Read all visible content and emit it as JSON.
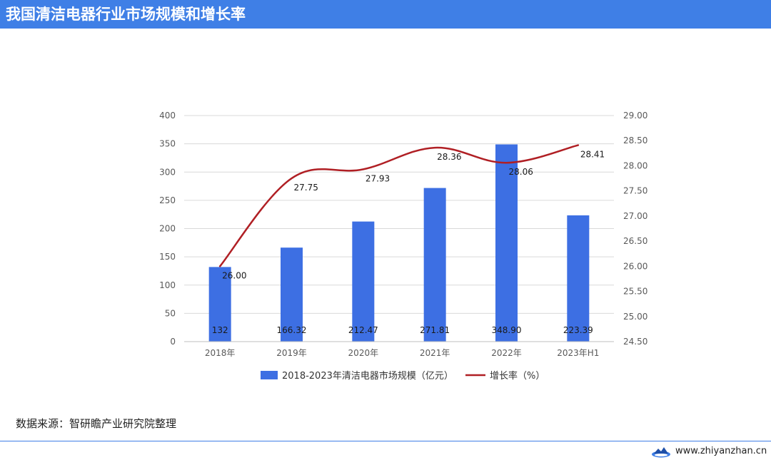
{
  "header": {
    "title": "我国清洁电器行业市场规模和增长率"
  },
  "footer": {
    "source": "数据来源：智研瞻产业研究院整理",
    "website": "www.zhiyanzhan.cn"
  },
  "colors": {
    "bar": "#3d6fe3",
    "line": "#b01f24",
    "header": "#3f7fe6"
  },
  "chart_data": {
    "type": "bar",
    "categories": [
      "2018年",
      "2019年",
      "2020年",
      "2021年",
      "2022年",
      "2023年H1"
    ],
    "series": [
      {
        "name": "2018-2023年清洁电器市场规模（亿元）",
        "type": "bar",
        "axis": "left",
        "values": [
          132,
          166.32,
          212.47,
          271.81,
          348.9,
          223.39
        ],
        "labels": [
          "132",
          "166.32",
          "212.47",
          "271.81",
          "348.90",
          "223.39"
        ]
      },
      {
        "name": "增长率（%）",
        "type": "line",
        "axis": "right",
        "values": [
          26.0,
          27.75,
          27.93,
          28.36,
          28.06,
          28.41
        ],
        "labels": [
          "26.00",
          "27.75",
          "27.93",
          "28.36",
          "28.06",
          "28.41"
        ]
      }
    ],
    "y_left": {
      "range": [
        0,
        400
      ],
      "ticks": [
        "0",
        "50",
        "100",
        "150",
        "200",
        "250",
        "300",
        "350",
        "400"
      ]
    },
    "y_right": {
      "range": [
        24.5,
        29.0
      ],
      "ticks": [
        "24.50",
        "25.00",
        "25.50",
        "26.00",
        "26.50",
        "27.00",
        "27.50",
        "28.00",
        "28.50",
        "29.00"
      ]
    },
    "grid": true,
    "legend_position": "bottom"
  }
}
